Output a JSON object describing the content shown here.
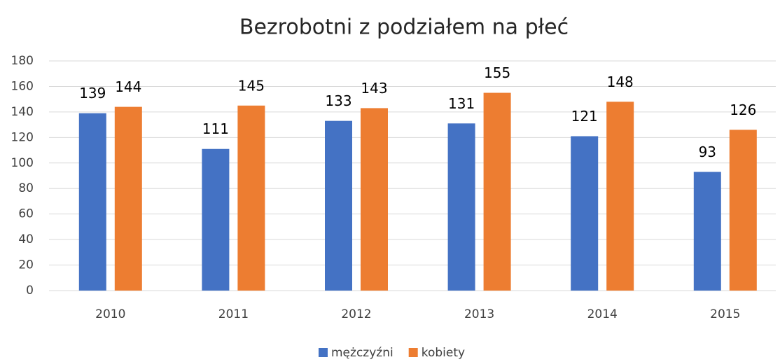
{
  "chart_data": {
    "type": "bar",
    "title": "Bezrobotni z podziałem na płeć",
    "categories": [
      "2010",
      "2011",
      "2012",
      "2013",
      "2014",
      "2015"
    ],
    "series": [
      {
        "name": "mężczyźni",
        "color": "#4472c4",
        "values": [
          139,
          111,
          133,
          131,
          121,
          93
        ]
      },
      {
        "name": "kobiety",
        "color": "#ed7d31",
        "values": [
          144,
          145,
          143,
          155,
          148,
          126
        ]
      }
    ],
    "ylim": [
      0,
      180
    ],
    "yticks": [
      0,
      20,
      40,
      60,
      80,
      100,
      120,
      140,
      160,
      180
    ],
    "grid": true,
    "legend": "bottom"
  }
}
